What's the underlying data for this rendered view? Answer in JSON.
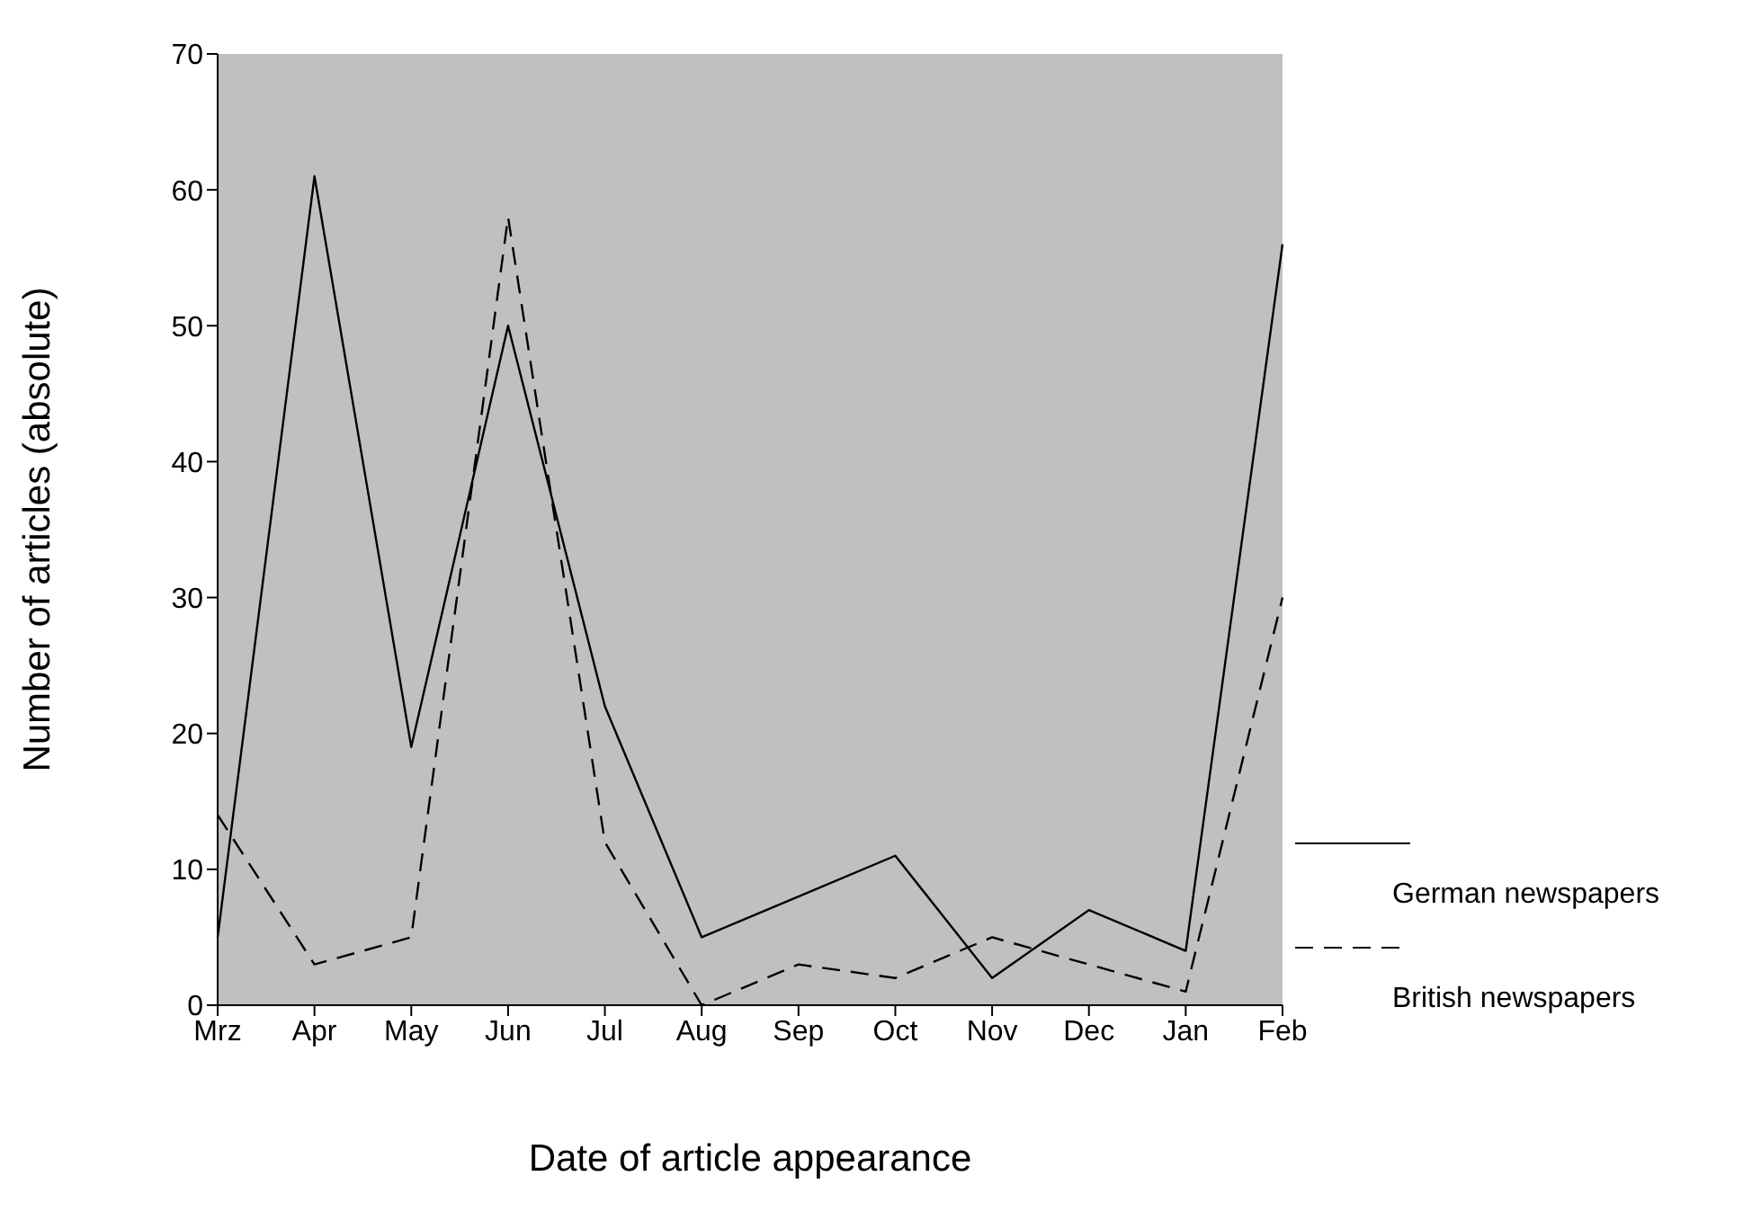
{
  "chart_data": {
    "type": "line",
    "xlabel": "Date of article appearance",
    "ylabel": "Number of articles (absolute)",
    "categories": [
      "Mrz",
      "Apr",
      "May",
      "Jun",
      "Jul",
      "Aug",
      "Sep",
      "Oct",
      "Nov",
      "Dec",
      "Jan",
      "Feb"
    ],
    "series": [
      {
        "name": "German newspapers",
        "color": "#000000",
        "line_style": "solid",
        "values": [
          5,
          61,
          19,
          50,
          22,
          5,
          8,
          11,
          2,
          7,
          4,
          56
        ]
      },
      {
        "name": "British newspapers",
        "color": "#000000",
        "line_style": "dashed",
        "values": [
          14,
          3,
          5,
          58,
          12,
          0,
          3,
          2,
          5,
          3,
          1,
          30
        ]
      }
    ],
    "ylim": [
      0,
      70
    ],
    "yticks": [
      0,
      10,
      20,
      30,
      40,
      50,
      60,
      70
    ],
    "grid": false,
    "legend": "right",
    "marker": "none"
  }
}
